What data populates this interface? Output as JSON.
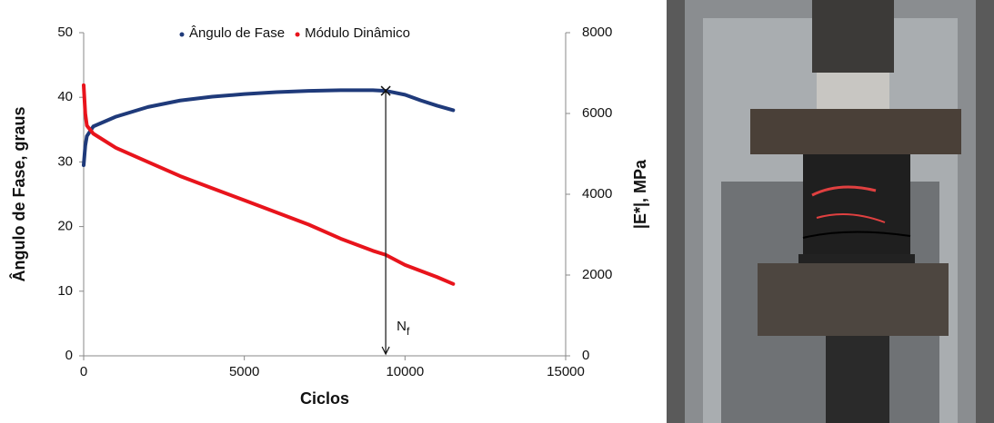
{
  "chart_data": {
    "type": "line",
    "x_label": "Ciclos",
    "y_label": "Ângulo de Fase, graus",
    "y2_label": "|E*|, MPa",
    "xlim": [
      0,
      15000
    ],
    "xticks": [
      0,
      5000,
      10000,
      15000
    ],
    "ylim": [
      0,
      50
    ],
    "yticks": [
      0,
      10,
      20,
      30,
      40,
      50
    ],
    "y2lim": [
      0,
      8000
    ],
    "y2ticks": [
      0,
      2000,
      4000,
      6000,
      8000
    ],
    "legend": "top",
    "series": [
      {
        "name": "Ângulo de Fase",
        "color": "#1f3a7a",
        "x": [
          0,
          50,
          100,
          300,
          1000,
          2000,
          3000,
          4000,
          5000,
          6000,
          7000,
          8000,
          9000,
          9400,
          10000,
          10500,
          11000,
          11500
        ],
        "values": [
          29.5,
          32.5,
          34,
          35.5,
          37,
          38.5,
          39.5,
          40.1,
          40.5,
          40.8,
          41,
          41.1,
          41.1,
          41,
          40.4,
          39.5,
          38.7,
          38
        ]
      },
      {
        "name": "Módulo Dinâmico",
        "color": "#e8141c",
        "axis": "y2",
        "x": [
          0,
          50,
          100,
          300,
          1000,
          2000,
          3000,
          4000,
          5000,
          6000,
          7000,
          8000,
          9000,
          9400,
          10000,
          11000,
          11500
        ],
        "values": [
          6700,
          6000,
          5700,
          5500,
          5150,
          4800,
          4450,
          4150,
          3850,
          3550,
          3250,
          2900,
          2600,
          2500,
          2250,
          1950,
          1780
        ]
      }
    ],
    "annotation": {
      "text": "N",
      "subscript": "f",
      "x": 9400,
      "y": 41
    }
  }
}
